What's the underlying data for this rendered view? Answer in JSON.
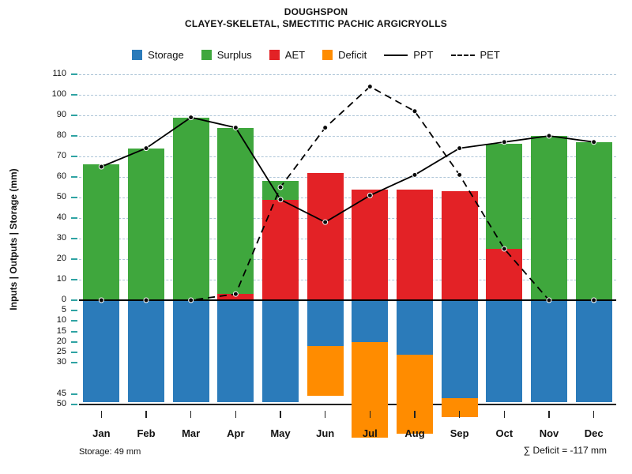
{
  "chart_data": {
    "type": "bar",
    "title": "DOUGHSPON",
    "subtitle": "CLAYEY-SKELETAL, SMECTITIC PACHIC ARGICRYOLLS",
    "ylabel": "Inputs | Outputs | Storage  (mm)",
    "categories": [
      "Jan",
      "Feb",
      "Mar",
      "Apr",
      "May",
      "Jun",
      "Jul",
      "Aug",
      "Sep",
      "Oct",
      "Nov",
      "Dec"
    ],
    "series": [
      {
        "name": "Storage",
        "kind": "bar-below-axis",
        "color": "#2B7BBA",
        "values": [
          49,
          49,
          49,
          49,
          49,
          22,
          20,
          26,
          47,
          49,
          49,
          49
        ]
      },
      {
        "name": "Surplus",
        "kind": "bar-stack-top",
        "color": "#3FA73D",
        "values": [
          66,
          74,
          89,
          81,
          9,
          0,
          0,
          0,
          0,
          51,
          80,
          77
        ]
      },
      {
        "name": "AET",
        "kind": "bar-stack-bottom",
        "color": "#E32226",
        "values": [
          0,
          0,
          0,
          3,
          49,
          62,
          54,
          54,
          53,
          25,
          0,
          0
        ]
      },
      {
        "name": "Deficit",
        "kind": "bar-below-storage",
        "color": "#FF8C00",
        "values": [
          0,
          0,
          0,
          0,
          0,
          24,
          46,
          38,
          9,
          0,
          0,
          0
        ]
      },
      {
        "name": "PPT",
        "kind": "line-solid",
        "color": "#000000",
        "values": [
          65,
          74,
          89,
          84,
          49,
          38,
          51,
          61,
          74,
          77,
          80,
          77
        ]
      },
      {
        "name": "PET",
        "kind": "line-dashed",
        "color": "#000000",
        "values": [
          0,
          0,
          0,
          3,
          55,
          84,
          104,
          92,
          61,
          25,
          0,
          0
        ]
      }
    ],
    "axes": {
      "upper_range": [
        0,
        110
      ],
      "lower_range": [
        0,
        50
      ],
      "upper_ticks": [
        0,
        10,
        20,
        30,
        40,
        50,
        60,
        70,
        80,
        90,
        100,
        110
      ],
      "lower_ticks": [
        5,
        10,
        15,
        20,
        25,
        30,
        45,
        50
      ],
      "grid": "dashed-horizontal",
      "grid_color": "#AEC6D8",
      "tick_color": "#2FA3A3"
    },
    "legend_position": "top-center",
    "annotations": {
      "storage": "Storage: 49 mm",
      "deficit": "∑ Deficit = -117 mm"
    }
  }
}
